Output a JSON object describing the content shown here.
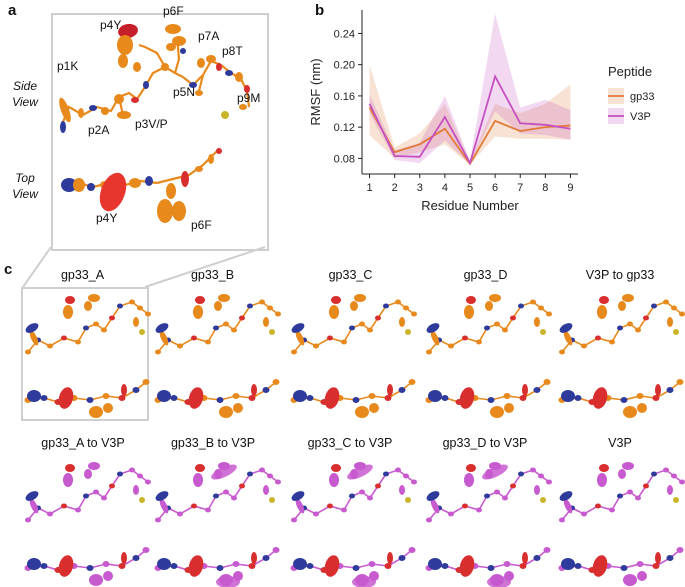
{
  "panel_a": {
    "letter": "a",
    "view_labels": {
      "side": "Side\nView",
      "top": "Top\nView"
    },
    "residue_labels": [
      "p1K",
      "p2A",
      "p3V/P",
      "p4Y",
      "p5N",
      "p6F",
      "p7A",
      "p8T",
      "p9M"
    ],
    "top_view_labels": [
      "p4Y",
      "p6F"
    ]
  },
  "panel_b": {
    "letter": "b",
    "chart_data": {
      "type": "line",
      "title": "",
      "xlabel": "Residue Number",
      "ylabel": "RMSF (nm)",
      "x": [
        1,
        2,
        3,
        4,
        5,
        6,
        7,
        8,
        9
      ],
      "ylim": [
        0.06,
        0.27
      ],
      "yticks": [
        0.08,
        0.12,
        0.16,
        0.2,
        0.24
      ],
      "xticks": [
        1,
        2,
        3,
        4,
        5,
        6,
        7,
        8,
        9
      ],
      "legend_title": "Peptide",
      "legend_position": "right",
      "series": [
        {
          "name": "gp33",
          "color": "#e07b39",
          "values": [
            0.145,
            0.088,
            0.098,
            0.118,
            0.073,
            0.128,
            0.115,
            0.12,
            0.122
          ],
          "lower": [
            0.11,
            0.08,
            0.088,
            0.098,
            0.072,
            0.108,
            0.105,
            0.105,
            0.104
          ],
          "upper": [
            0.2,
            0.094,
            0.112,
            0.15,
            0.076,
            0.15,
            0.138,
            0.15,
            0.175
          ]
        },
        {
          "name": "V3P",
          "color": "#c550c0",
          "values": [
            0.15,
            0.083,
            0.082,
            0.133,
            0.074,
            0.185,
            0.125,
            0.123,
            0.118
          ],
          "lower": [
            0.138,
            0.078,
            0.074,
            0.103,
            0.072,
            0.14,
            0.112,
            0.11,
            0.104
          ],
          "upper": [
            0.162,
            0.09,
            0.1,
            0.16,
            0.077,
            0.265,
            0.145,
            0.155,
            0.142
          ]
        }
      ]
    }
  },
  "panel_c": {
    "letter": "c",
    "row1": [
      "gp33_A",
      "gp33_B",
      "gp33_C",
      "gp33_D",
      "V3P to gp33"
    ],
    "row2": [
      "gp33_A to V3P",
      "gp33_B to V3P",
      "gp33_C to V3P",
      "gp33_D to V3P",
      "V3P"
    ],
    "colors": {
      "gp33": "#e8891c",
      "v3p": "#c85ad0",
      "nitrogen": "#2e3a9c",
      "oxygen": "#d92e2e",
      "sulfur": "#c9b52a",
      "frame": "#cfcfcf"
    }
  }
}
